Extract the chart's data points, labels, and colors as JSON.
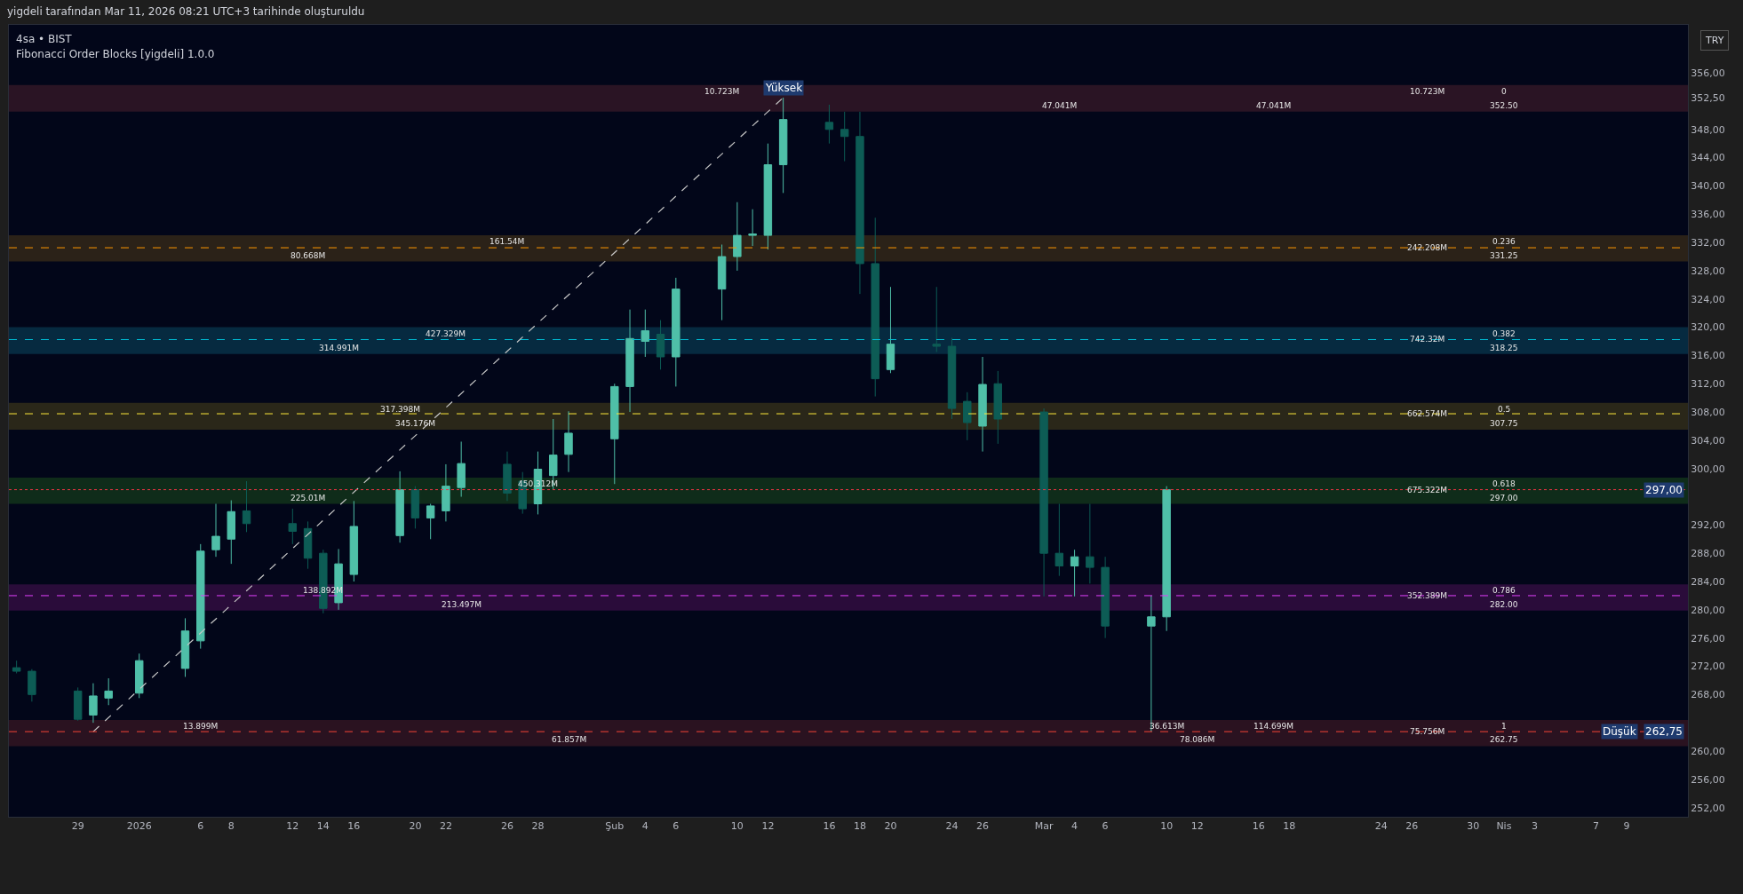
{
  "chart_data": {
    "type": "candlestick",
    "title": "yigdeli tarafından Mar 11, 2026 08:21 UTC+3 tarihinde oluşturuldu",
    "subtitle": "4sa • BIST",
    "ylabel": "TRY",
    "x": [
      "2025-12-25",
      "2025-12-26",
      "2025-12-29",
      "2025-12-30",
      "2025-12-31",
      "2026-01-02",
      "2026-01-05",
      "2026-01-06",
      "2026-01-07",
      "2026-01-08",
      "2026-01-09",
      "2026-01-12",
      "2026-01-13",
      "2026-01-14",
      "2026-01-15",
      "2026-01-16",
      "2026-01-19",
      "2026-01-20",
      "2026-01-21",
      "2026-01-22",
      "2026-01-23",
      "2026-01-26",
      "2026-01-27",
      "2026-01-28",
      "2026-01-29",
      "2026-01-30",
      "2026-02-02",
      "2026-02-03",
      "2026-02-04",
      "2026-02-05",
      "2026-02-06",
      "2026-02-09",
      "2026-02-10",
      "2026-02-11",
      "2026-02-12",
      "2026-02-13",
      "2026-02-16",
      "2026-02-17",
      "2026-02-18",
      "2026-02-19",
      "2026-02-20",
      "2026-02-23",
      "2026-02-24",
      "2026-02-25",
      "2026-02-26",
      "2026-02-27",
      "2026-03-02",
      "2026-03-03",
      "2026-03-04",
      "2026-03-05",
      "2026-03-06",
      "2026-03-09",
      "2026-03-10"
    ],
    "ohlc": [
      [
        271.8,
        272.8,
        271,
        271.3
      ],
      [
        271.3,
        271.6,
        267,
        268
      ],
      [
        268.5,
        269,
        264.3,
        264.5
      ],
      [
        265.1,
        269.6,
        264,
        267.8
      ],
      [
        267.5,
        270.3,
        266.5,
        268.5
      ],
      [
        268.2,
        273.8,
        267.5,
        272.8
      ],
      [
        271.7,
        278.8,
        270.5,
        277
      ],
      [
        275.6,
        289.3,
        274.5,
        288.3
      ],
      [
        288.5,
        295,
        287.5,
        290.4
      ],
      [
        290,
        295.5,
        286.5,
        293.9
      ],
      [
        294,
        298.2,
        291,
        292.2
      ],
      [
        292.2,
        294.3,
        289.3,
        291.1
      ],
      [
        291.5,
        292.5,
        285.8,
        287.3
      ],
      [
        288,
        288.5,
        279.5,
        280.2
      ],
      [
        281,
        288.6,
        280,
        286.5
      ],
      [
        285,
        295.4,
        284,
        291.8
      ],
      [
        290.5,
        299.6,
        289.5,
        297
      ],
      [
        297,
        297.5,
        291.5,
        293
      ],
      [
        293,
        295,
        290,
        294.7
      ],
      [
        294,
        300.6,
        292.5,
        297.5
      ],
      [
        297.3,
        303.8,
        296,
        300.7
      ],
      [
        300.6,
        302.4,
        295.4,
        296.5
      ],
      [
        298.2,
        299.5,
        293.6,
        294.3
      ],
      [
        295,
        302.4,
        293.5,
        299.9
      ],
      [
        299,
        307,
        297,
        301.9
      ],
      [
        302,
        308.1,
        299.5,
        305
      ],
      [
        304.2,
        312,
        297.8,
        311.6
      ],
      [
        311.6,
        322.5,
        308,
        318.4
      ],
      [
        318,
        322.5,
        315.8,
        319.5
      ],
      [
        319,
        321,
        314,
        315.8
      ],
      [
        315.8,
        327,
        311.6,
        325.4
      ],
      [
        325.4,
        331.7,
        321,
        330
      ],
      [
        330,
        337.7,
        328,
        333
      ],
      [
        333,
        336.7,
        331.5,
        333.2
      ],
      [
        333,
        346,
        331,
        343
      ],
      [
        343,
        352.5,
        339,
        349.4
      ],
      [
        349,
        351.5,
        346,
        348
      ],
      [
        348,
        350.5,
        343.5,
        347
      ],
      [
        347,
        350.5,
        324.7,
        329
      ],
      [
        329,
        335.5,
        310.2,
        312.7
      ],
      [
        314,
        325.7,
        313.5,
        317.6
      ],
      [
        317.6,
        325.7,
        316.5,
        317.3
      ],
      [
        317.3,
        318.5,
        307,
        308.5
      ],
      [
        309.5,
        310.8,
        304,
        306.5
      ],
      [
        306,
        315.8,
        302.4,
        311.9
      ],
      [
        312,
        313.8,
        303.5,
        307
      ],
      [
        308,
        308.5,
        281.9,
        288
      ],
      [
        288,
        295,
        284.8,
        286.2
      ],
      [
        286.2,
        288.5,
        281.9,
        287.5
      ],
      [
        287.5,
        295,
        283.7,
        286
      ],
      [
        286,
        287.5,
        276,
        277.7
      ],
      [
        277.7,
        282,
        262.75,
        279
      ],
      [
        279,
        297.5,
        277,
        297
      ]
    ],
    "series": [
      {
        "type": "line",
        "x": [
          "2025-12-30",
          "2026-02-13"
        ],
        "values": [
          262.75,
          352.5
        ],
        "color": "#c8c8c8",
        "line_style": "dashed",
        "marker": "none"
      }
    ],
    "xlim": [
      "2025-12-24T12:00",
      "2026-04-13"
    ],
    "xticks": [
      {
        "value": "2025-12-29",
        "label": "29"
      },
      {
        "value": "2026-01-02",
        "label": "2026"
      },
      {
        "value": "2026-01-06",
        "label": "6"
      },
      {
        "value": "2026-01-08",
        "label": "8"
      },
      {
        "value": "2026-01-12",
        "label": "12"
      },
      {
        "value": "2026-01-14",
        "label": "14"
      },
      {
        "value": "2026-01-16",
        "label": "16"
      },
      {
        "value": "2026-01-20",
        "label": "20"
      },
      {
        "value": "2026-01-22",
        "label": "22"
      },
      {
        "value": "2026-01-26",
        "label": "26"
      },
      {
        "value": "2026-01-28",
        "label": "28"
      },
      {
        "value": "2026-02-02",
        "label": "Şub"
      },
      {
        "value": "2026-02-04",
        "label": "4"
      },
      {
        "value": "2026-02-06",
        "label": "6"
      },
      {
        "value": "2026-02-10",
        "label": "10"
      },
      {
        "value": "2026-02-12",
        "label": "12"
      },
      {
        "value": "2026-02-16",
        "label": "16"
      },
      {
        "value": "2026-02-18",
        "label": "18"
      },
      {
        "value": "2026-02-20",
        "label": "20"
      },
      {
        "value": "2026-02-24",
        "label": "24"
      },
      {
        "value": "2026-02-26",
        "label": "26"
      },
      {
        "value": "2026-03-02",
        "label": "Mar"
      },
      {
        "value": "2026-03-04",
        "label": "4"
      },
      {
        "value": "2026-03-06",
        "label": "6"
      },
      {
        "value": "2026-03-10",
        "label": "10"
      },
      {
        "value": "2026-03-12",
        "label": "12"
      },
      {
        "value": "2026-03-16",
        "label": "16"
      },
      {
        "value": "2026-03-18",
        "label": "18"
      },
      {
        "value": "2026-03-24",
        "label": "24"
      },
      {
        "value": "2026-03-26",
        "label": "26"
      },
      {
        "value": "2026-03-30",
        "label": "30"
      },
      {
        "value": "2026-04-01",
        "label": "Nis"
      },
      {
        "value": "2026-04-03",
        "label": "3"
      },
      {
        "value": "2026-04-07",
        "label": "7"
      },
      {
        "value": "2026-04-09",
        "label": "9"
      }
    ],
    "ylim": [
      250.7,
      362.8
    ],
    "yticks": [
      {
        "value": 252,
        "label": "252,00"
      },
      {
        "value": 256,
        "label": "256,00"
      },
      {
        "value": 260,
        "label": "260,00"
      },
      {
        "value": 268,
        "label": "268,00"
      },
      {
        "value": 272,
        "label": "272,00"
      },
      {
        "value": 276,
        "label": "276,00"
      },
      {
        "value": 280,
        "label": "280,00"
      },
      {
        "value": 284,
        "label": "284,00"
      },
      {
        "value": 288,
        "label": "288,00"
      },
      {
        "value": 292,
        "label": "292,00"
      },
      {
        "value": 300,
        "label": "300,00"
      },
      {
        "value": 304,
        "label": "304,00"
      },
      {
        "value": 308,
        "label": "308,00"
      },
      {
        "value": 312,
        "label": "312,00"
      },
      {
        "value": 316,
        "label": "316,00"
      },
      {
        "value": 320,
        "label": "320,00"
      },
      {
        "value": 324,
        "label": "324,00"
      },
      {
        "value": 328,
        "label": "328,00"
      },
      {
        "value": 332,
        "label": "332,00"
      },
      {
        "value": 336,
        "label": "336,00"
      },
      {
        "value": 340,
        "label": "340,00"
      },
      {
        "value": 344,
        "label": "344,00"
      },
      {
        "value": 348,
        "label": "348,00"
      },
      {
        "value": 352.5,
        "label": "352,50"
      },
      {
        "value": 356,
        "label": "356,00"
      }
    ],
    "bands": [
      {
        "axis": "y",
        "from": 350.5,
        "to": 354.3,
        "color": "#2a1424"
      },
      {
        "axis": "y",
        "from": 329.3,
        "to": 333,
        "color": "#2b2218"
      },
      {
        "axis": "y",
        "from": 316.2,
        "to": 320,
        "color": "#062a40"
      },
      {
        "axis": "y",
        "from": 305.5,
        "to": 309.3,
        "color": "#2a2719"
      },
      {
        "axis": "y",
        "from": 295,
        "to": 298.7,
        "color": "#0f2c1a"
      },
      {
        "axis": "y",
        "from": 279.9,
        "to": 283.6,
        "color": "#2a0c3a"
      },
      {
        "axis": "y",
        "from": 260.7,
        "to": 264.4,
        "color": "#2a1220"
      }
    ],
    "ref_lines": [
      {
        "axis": "y",
        "value": 331.25,
        "color": "#ff9800",
        "line_style": "dashed"
      },
      {
        "axis": "y",
        "value": 318.25,
        "color": "#00bcd4",
        "line_style": "dashed"
      },
      {
        "axis": "y",
        "value": 307.75,
        "color": "#ffeb3b",
        "line_style": "dashed"
      },
      {
        "axis": "y",
        "value": 282,
        "color": "#e040fb",
        "line_style": "dashed"
      },
      {
        "axis": "y",
        "value": 262.75,
        "color": "#f44336",
        "line_style": "dashed"
      },
      {
        "axis": "y",
        "value": 297,
        "color": "#f23645",
        "line_style": "dotted"
      }
    ],
    "annotations": [
      "Fibonacci Order Blocks [yigdeli] 1.0.0",
      {
        "text": "10.723M",
        "x": "2026-02-09",
        "y": 354.3
      },
      {
        "text": "47.041M",
        "x": "2026-03-03",
        "y": 350.5
      },
      {
        "text": "47.041M",
        "x": "2026-03-17",
        "y": 350.5
      },
      {
        "text": "161.54M",
        "x": "2026-01-26",
        "y": 333
      },
      {
        "text": "80.668M",
        "x": "2026-01-13",
        "y": 329.3
      },
      {
        "text": "427.329M",
        "x": "2026-01-22",
        "y": 320
      },
      {
        "text": "314.991M",
        "x": "2026-01-15",
        "y": 316.2
      },
      {
        "text": "317.398M",
        "x": "2026-01-19",
        "y": 309.3
      },
      {
        "text": "345.176M",
        "x": "2026-01-20",
        "y": 305.5
      },
      {
        "text": "450.312M",
        "x": "2026-01-28",
        "y": 298.7
      },
      {
        "text": "225.01M",
        "x": "2026-01-13",
        "y": 295
      },
      {
        "text": "138.892M",
        "x": "2026-01-14",
        "y": 283.6
      },
      {
        "text": "213.497M",
        "x": "2026-01-23",
        "y": 279.9
      },
      {
        "text": "13.899M",
        "x": "2026-01-06",
        "y": 264.4
      },
      {
        "text": "61.857M",
        "x": "2026-01-30",
        "y": 260.7
      },
      {
        "text": "36.613M",
        "x": "2026-03-10",
        "y": 264.4
      },
      {
        "text": "78.086M",
        "x": "2026-03-12",
        "y": 260.7
      },
      {
        "text": "114.699M",
        "x": "2026-03-17",
        "y": 264.4
      },
      {
        "text": "10.723M",
        "x": "2026-03-27",
        "y": 354.3
      },
      {
        "text": "0",
        "x": "2026-04-01",
        "y": 354.3
      },
      {
        "text": "352.50",
        "x": "2026-04-01",
        "y": 350.5
      },
      {
        "text": "242.208M",
        "x": "2026-03-27",
        "y": 331.25
      },
      {
        "text": "0.236",
        "x": "2026-04-01",
        "y": 333
      },
      {
        "text": "331.25",
        "x": "2026-04-01",
        "y": 329.3
      },
      {
        "text": "742.32M",
        "x": "2026-03-27",
        "y": 318.25
      },
      {
        "text": "0.382",
        "x": "2026-04-01",
        "y": 320
      },
      {
        "text": "318.25",
        "x": "2026-04-01",
        "y": 316.2
      },
      {
        "text": "662.574M",
        "x": "2026-03-27",
        "y": 307.75
      },
      {
        "text": "0.5",
        "x": "2026-04-01",
        "y": 309.3
      },
      {
        "text": "307.75",
        "x": "2026-04-01",
        "y": 305.5
      },
      {
        "text": "675.322M",
        "x": "2026-03-27",
        "y": 297
      },
      {
        "text": "0.618",
        "x": "2026-04-01",
        "y": 298.7
      },
      {
        "text": "297.00",
        "x": "2026-04-01",
        "y": 295
      },
      {
        "text": "352.389M",
        "x": "2026-03-27",
        "y": 282
      },
      {
        "text": "0.786",
        "x": "2026-04-01",
        "y": 283.6
      },
      {
        "text": "282.00",
        "x": "2026-04-01",
        "y": 279.9
      },
      {
        "text": "75.756M",
        "x": "2026-03-27",
        "y": 262.75
      },
      {
        "text": "1",
        "x": "2026-04-01",
        "y": 264.4
      },
      {
        "text": "262.75",
        "x": "2026-04-01",
        "y": 260.7
      },
      {
        "text": "Yüksek",
        "x": "2026-02-13",
        "y": 352.5
      },
      {
        "text": "297,00",
        "y": 297
      },
      {
        "text": "262,75",
        "y": 262.75
      },
      {
        "text": "Düşük",
        "y": 262.75
      }
    ]
  }
}
